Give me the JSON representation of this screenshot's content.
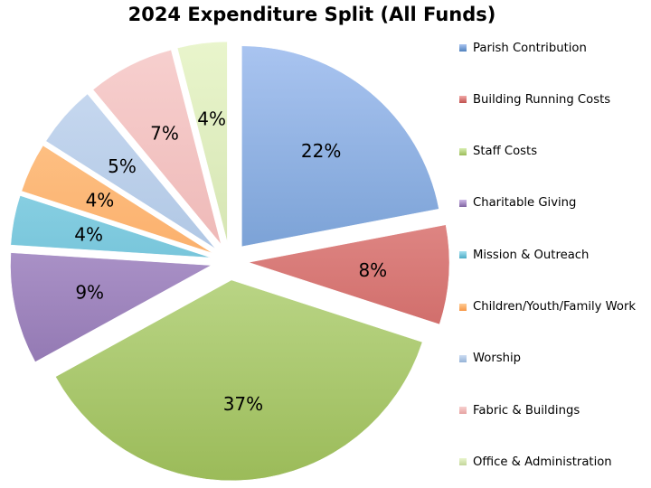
{
  "chart_data": {
    "type": "pie",
    "title": "2024 Expenditure Split (All Funds)",
    "legend_position": "right",
    "exploded": true,
    "slices": [
      {
        "name": "Parish Contribution",
        "value": 22,
        "label": "22%",
        "color": "#4F81BD",
        "color_light": "#A9C4F0"
      },
      {
        "name": "Building Running Costs",
        "value": 8,
        "label": "8%",
        "color": "#C0504D",
        "color_light": "#F2A9A7"
      },
      {
        "name": "Staff Costs",
        "value": 37,
        "label": "37%",
        "color": "#9BBB59",
        "color_light": "#D7EEB0"
      },
      {
        "name": "Charitable Giving",
        "value": 9,
        "label": "9%",
        "color": "#8064A2",
        "color_light": "#CDB8E6"
      },
      {
        "name": "Mission & Outreach",
        "value": 4,
        "label": "4%",
        "color": "#4BACC6",
        "color_light": "#A6E0F0"
      },
      {
        "name": "Children/Youth/Family Work",
        "value": 4,
        "label": "4%",
        "color": "#F79646",
        "color_light": "#FFCB94"
      },
      {
        "name": "Worship",
        "value": 5,
        "label": "5%",
        "color": "#95B3D7",
        "color_light": "#CCDCF2"
      },
      {
        "name": "Fabric & Buildings",
        "value": 7,
        "label": "7%",
        "color": "#E6A3A1",
        "color_light": "#F7D0CF"
      },
      {
        "name": "Office & Administration",
        "value": 4,
        "label": "4%",
        "color": "#C3D69B",
        "color_light": "#E9F5CC"
      }
    ]
  }
}
